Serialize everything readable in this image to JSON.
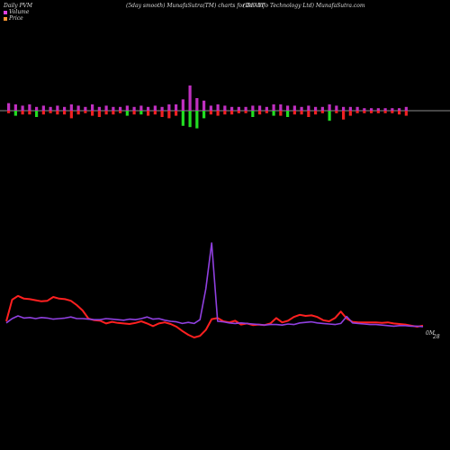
{
  "header": {
    "left": "Daily PVM",
    "center": "(5day smooth) MunafaSutra(TM) charts for DEVIT",
    "right": "(Dev  Info  Technology Ltd) MunafaSutra.com"
  },
  "legend": [
    {
      "label": "Volume",
      "color": "#e040e0"
    },
    {
      "label": "Price",
      "color": "#ff9933"
    }
  ],
  "colors": {
    "price": "#ff2020",
    "pvm": "#9040e0",
    "pvm_spike": "#c050ff",
    "bar_up": "#22dd22",
    "bar_down": "#ee2222",
    "bar_vol": "#c030c0",
    "axis": "#bbbbbb"
  },
  "chart_data": {
    "type": "line",
    "end_label_top": "0M",
    "end_label_bottom": "28",
    "volume_bars": [
      {
        "up": 0.6,
        "down": 0.2,
        "color": "bar_down"
      },
      {
        "up": 0.5,
        "down": 0.4,
        "color": "bar_up"
      },
      {
        "up": 0.4,
        "down": 0.3,
        "color": "bar_down"
      },
      {
        "up": 0.5,
        "down": 0.3,
        "color": "bar_down"
      },
      {
        "up": 0.3,
        "down": 0.5,
        "color": "bar_up"
      },
      {
        "up": 0.4,
        "down": 0.3,
        "color": "bar_down"
      },
      {
        "up": 0.3,
        "down": 0.2,
        "color": "bar_down"
      },
      {
        "up": 0.4,
        "down": 0.3,
        "color": "bar_down"
      },
      {
        "up": 0.3,
        "down": 0.3,
        "color": "bar_down"
      },
      {
        "up": 0.5,
        "down": 0.6,
        "color": "bar_down"
      },
      {
        "up": 0.4,
        "down": 0.3,
        "color": "bar_down"
      },
      {
        "up": 0.3,
        "down": 0.2,
        "color": "bar_down"
      },
      {
        "up": 0.5,
        "down": 0.4,
        "color": "bar_down"
      },
      {
        "up": 0.3,
        "down": 0.5,
        "color": "bar_down"
      },
      {
        "up": 0.4,
        "down": 0.3,
        "color": "bar_down"
      },
      {
        "up": 0.3,
        "down": 0.3,
        "color": "bar_down"
      },
      {
        "up": 0.3,
        "down": 0.2,
        "color": "bar_down"
      },
      {
        "up": 0.4,
        "down": 0.4,
        "color": "bar_up"
      },
      {
        "up": 0.3,
        "down": 0.3,
        "color": "bar_down"
      },
      {
        "up": 0.4,
        "down": 0.3,
        "color": "bar_up"
      },
      {
        "up": 0.3,
        "down": 0.4,
        "color": "bar_down"
      },
      {
        "up": 0.4,
        "down": 0.3,
        "color": "bar_down"
      },
      {
        "up": 0.3,
        "down": 0.5,
        "color": "bar_down"
      },
      {
        "up": 0.5,
        "down": 0.6,
        "color": "bar_down"
      },
      {
        "up": 0.5,
        "down": 0.4,
        "color": "bar_down"
      },
      {
        "up": 0.9,
        "down": 1.2,
        "color": "bar_up"
      },
      {
        "up": 2.0,
        "down": 1.3,
        "color": "bar_up"
      },
      {
        "up": 1.0,
        "down": 1.4,
        "color": "bar_up"
      },
      {
        "up": 0.8,
        "down": 0.6,
        "color": "bar_up"
      },
      {
        "up": 0.4,
        "down": 0.3,
        "color": "bar_down"
      },
      {
        "up": 0.5,
        "down": 0.4,
        "color": "bar_down"
      },
      {
        "up": 0.4,
        "down": 0.3,
        "color": "bar_down"
      },
      {
        "up": 0.3,
        "down": 0.3,
        "color": "bar_down"
      },
      {
        "up": 0.3,
        "down": 0.2,
        "color": "bar_down"
      },
      {
        "up": 0.3,
        "down": 0.2,
        "color": "bar_down"
      },
      {
        "up": 0.4,
        "down": 0.5,
        "color": "bar_up"
      },
      {
        "up": 0.4,
        "down": 0.3,
        "color": "bar_down"
      },
      {
        "up": 0.3,
        "down": 0.2,
        "color": "bar_down"
      },
      {
        "up": 0.5,
        "down": 0.4,
        "color": "bar_up"
      },
      {
        "up": 0.5,
        "down": 0.4,
        "color": "bar_down"
      },
      {
        "up": 0.4,
        "down": 0.5,
        "color": "bar_up"
      },
      {
        "up": 0.4,
        "down": 0.3,
        "color": "bar_down"
      },
      {
        "up": 0.3,
        "down": 0.3,
        "color": "bar_down"
      },
      {
        "up": 0.4,
        "down": 0.5,
        "color": "bar_down"
      },
      {
        "up": 0.3,
        "down": 0.3,
        "color": "bar_down"
      },
      {
        "up": 0.3,
        "down": 0.2,
        "color": "bar_down"
      },
      {
        "up": 0.5,
        "down": 0.8,
        "color": "bar_up"
      },
      {
        "up": 0.4,
        "down": 0.2,
        "color": "bar_down"
      },
      {
        "up": 0.3,
        "down": 0.7,
        "color": "bar_down"
      },
      {
        "up": 0.3,
        "down": 0.4,
        "color": "bar_down"
      },
      {
        "up": 0.3,
        "down": 0.2,
        "color": "bar_down"
      },
      {
        "up": 0.2,
        "down": 0.2,
        "color": "bar_down"
      },
      {
        "up": 0.2,
        "down": 0.2,
        "color": "bar_down"
      },
      {
        "up": 0.2,
        "down": 0.2,
        "color": "bar_down"
      },
      {
        "up": 0.2,
        "down": 0.2,
        "color": "bar_down"
      },
      {
        "up": 0.2,
        "down": 0.2,
        "color": "bar_down"
      },
      {
        "up": 0.2,
        "down": 0.3,
        "color": "bar_down"
      },
      {
        "up": 0.3,
        "down": 0.4,
        "color": "bar_down"
      }
    ],
    "series": [
      {
        "key": "price",
        "values": [
          30,
          70,
          77,
          72,
          71,
          69,
          67,
          68,
          75,
          72,
          71,
          68,
          60,
          50,
          35,
          32,
          31,
          26,
          29,
          27,
          26,
          25,
          27,
          30,
          26,
          21,
          26,
          28,
          25,
          20,
          12,
          5,
          0,
          3,
          14,
          34,
          36,
          30,
          28,
          31,
          24,
          26,
          23,
          24,
          23,
          26,
          36,
          28,
          31,
          38,
          42,
          40,
          41,
          38,
          32,
          30,
          36,
          48,
          35,
          29,
          28,
          28,
          28,
          28,
          27,
          28,
          26,
          25,
          24,
          22,
          20,
          22
        ]
      },
      {
        "key": "pvm",
        "values": [
          27,
          35,
          40,
          36,
          37,
          35,
          37,
          36,
          34,
          35,
          36,
          38,
          35,
          35,
          34,
          33,
          33,
          35,
          34,
          33,
          32,
          34,
          33,
          35,
          38,
          34,
          35,
          32,
          30,
          29,
          26,
          28,
          26,
          33,
          90,
          175,
          30,
          29,
          27,
          26,
          27,
          26,
          25,
          24,
          23,
          24,
          24,
          23,
          25,
          24,
          27,
          28,
          29,
          27,
          26,
          25,
          24,
          26,
          39,
          27,
          26,
          25,
          24,
          24,
          23,
          22,
          21,
          22,
          22,
          21,
          21,
          20
        ]
      }
    ]
  }
}
